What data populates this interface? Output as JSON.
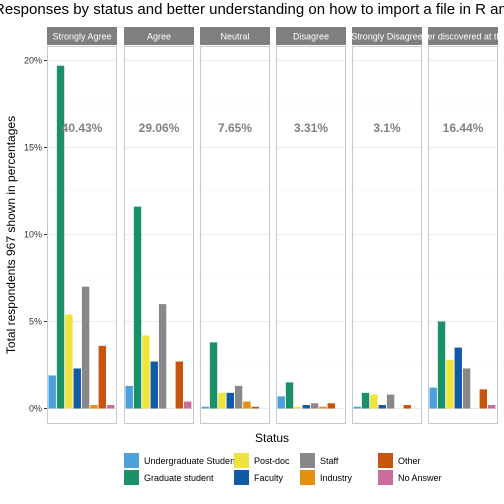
{
  "chart_data": {
    "type": "bar",
    "title": "Responses by status and better understanding on how to import a file in R and",
    "xlabel": "Status",
    "ylabel": "Total respondents 967 shown in percentages",
    "ylim": [
      0,
      21
    ],
    "yticks": [
      0,
      5,
      10,
      15,
      20
    ],
    "ytick_labels": [
      "0%",
      "5%",
      "10%",
      "15%",
      "20%"
    ],
    "grid": true,
    "legend_position": "bottom",
    "categories": [
      "Undergraduate Student",
      "Graduate student",
      "Post-doc",
      "Faculty",
      "Staff",
      "Industry",
      "Other",
      "No Answer"
    ],
    "colors": [
      "#4ba0dd",
      "#1a9068",
      "#f0e33c",
      "#0f5ba6",
      "#888888",
      "#e5900e",
      "#c9540b",
      "#cc6c9c"
    ],
    "panels": [
      {
        "label": "Strongly Agree",
        "annotation": "40.43%",
        "values": [
          1.9,
          19.7,
          5.4,
          2.3,
          7.0,
          0.2,
          3.6,
          0.2
        ]
      },
      {
        "label": "Agree",
        "annotation": "29.06%",
        "values": [
          1.3,
          11.6,
          4.2,
          2.7,
          6.0,
          0.0,
          2.7,
          0.4
        ]
      },
      {
        "label": "Neutral",
        "annotation": "7.65%",
        "values": [
          0.1,
          3.8,
          0.9,
          0.9,
          1.3,
          0.4,
          0.1,
          0.0
        ]
      },
      {
        "label": "Disagree",
        "annotation": "3.31%",
        "values": [
          0.7,
          1.5,
          0.1,
          0.2,
          0.3,
          0.1,
          0.3,
          0.0
        ]
      },
      {
        "label": "Strongly Disagree",
        "annotation": "3.1%",
        "values": [
          0.1,
          0.9,
          0.8,
          0.2,
          0.8,
          0.0,
          0.2,
          0.0
        ]
      },
      {
        "label": "I've never discovered at this work",
        "annotation": "16.44%",
        "values": [
          1.2,
          5.0,
          2.8,
          3.5,
          2.3,
          0.0,
          1.1,
          0.2
        ]
      }
    ]
  }
}
